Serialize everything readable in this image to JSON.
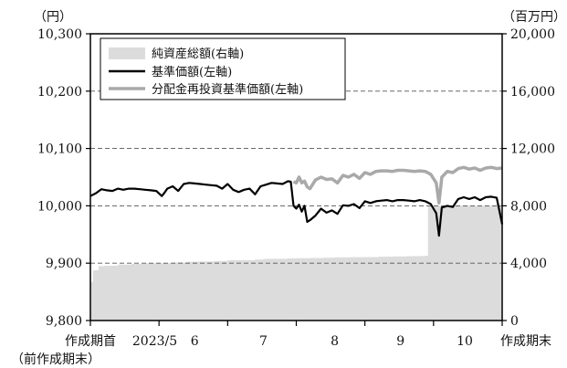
{
  "chart_data": {
    "type": "line",
    "title": "",
    "y_left_unit": "（円）",
    "y_right_unit": "（百万円）",
    "y_left": {
      "min": 9800,
      "max": 10300,
      "ticks": [
        9800,
        9900,
        10000,
        10100,
        10200,
        10300
      ],
      "tick_labels": [
        "9,800",
        "9,900",
        "10,000",
        "10,100",
        "10,200",
        "10,300"
      ]
    },
    "y_right": {
      "min": 0,
      "max": 20000,
      "ticks": [
        0,
        4000,
        8000,
        12000,
        16000,
        20000
      ],
      "tick_labels": [
        "0",
        "4,000",
        "8,000",
        "12,000",
        "16,000",
        "20,000"
      ]
    },
    "x_range": [
      0,
      150
    ],
    "x_ticks": [
      0,
      25,
      50,
      75,
      100,
      125,
      150
    ],
    "x_tick_labels": [
      "作成期首",
      "2023/5",
      "6",
      "7",
      "8",
      "9",
      "10",
      "作成期末"
    ],
    "x_tick_label_positions": [
      0,
      25,
      38,
      63,
      89,
      113,
      137,
      150
    ],
    "x_sublabel": "（前作成期末）",
    "gridlines": "dashed horizontal",
    "legend_position": "top-left",
    "series": [
      {
        "name": "純資産総額(右軸)",
        "kind": "area",
        "axis": "right",
        "color": "#dcdcdc",
        "x": [
          0,
          1,
          3,
          5,
          10,
          15,
          20,
          25,
          30,
          35,
          38,
          40,
          45,
          50,
          55,
          60,
          63,
          65,
          70,
          72,
          75,
          80,
          85,
          89,
          95,
          100,
          105,
          110,
          115,
          120,
          122,
          123,
          125,
          128,
          130,
          135,
          140,
          145,
          150
        ],
        "values": [
          2700,
          3500,
          3800,
          3820,
          3900,
          3950,
          4000,
          4000,
          4050,
          4100,
          4110,
          4120,
          4150,
          4200,
          4200,
          4250,
          4300,
          4310,
          4310,
          4330,
          4350,
          4360,
          4380,
          4400,
          4420,
          4430,
          4450,
          4470,
          4490,
          4500,
          4520,
          8000,
          8000,
          8000,
          8000,
          8010,
          8000,
          8000,
          8000
        ]
      },
      {
        "name": "基準価額(左軸)",
        "kind": "line",
        "axis": "left",
        "color": "#000000",
        "x": [
          0,
          2,
          4,
          6,
          8,
          10,
          12,
          14,
          16,
          18,
          20,
          22,
          24,
          26,
          27,
          28,
          30,
          32,
          34,
          36,
          38,
          40,
          42,
          44,
          46,
          48,
          50,
          52,
          54,
          56,
          58,
          60,
          62,
          64,
          66,
          68,
          70,
          72,
          73,
          74,
          75,
          76,
          77,
          78,
          79,
          80,
          82,
          84,
          86,
          88,
          90,
          92,
          94,
          96,
          98,
          100,
          102,
          104,
          106,
          108,
          110,
          112,
          114,
          116,
          118,
          120,
          122,
          124,
          126,
          127,
          128,
          130,
          132,
          134,
          136,
          138,
          140,
          142,
          144,
          146,
          148,
          150
        ],
        "values": [
          10017,
          10022,
          10029,
          10027,
          10026,
          10030,
          10028,
          10030,
          10030,
          10029,
          10028,
          10027,
          10026,
          10017,
          10023,
          10030,
          10034,
          10026,
          10038,
          10040,
          10039,
          10038,
          10037,
          10036,
          10035,
          10030,
          10038,
          10028,
          10024,
          10028,
          10030,
          10020,
          10034,
          10037,
          10040,
          10039,
          10038,
          10043,
          10042,
          10000,
          9995,
          10002,
          9990,
          10000,
          9972,
          9975,
          9983,
          9995,
          9988,
          9992,
          9986,
          10001,
          10000,
          10003,
          9996,
          10008,
          10005,
          10008,
          10009,
          10010,
          10008,
          10010,
          10010,
          10009,
          10008,
          10010,
          10008,
          10003,
          9987,
          9948,
          9997,
          10000,
          9998,
          10012,
          10015,
          10012,
          10015,
          10010,
          10015,
          10016,
          10014,
          9968
        ]
      },
      {
        "name": "分配金再投資基準価額(左軸)",
        "kind": "line",
        "axis": "left",
        "color": "#a9a9a9",
        "x": [
          74,
          75,
          76,
          77,
          78,
          79,
          80,
          82,
          84,
          86,
          88,
          90,
          92,
          94,
          96,
          98,
          100,
          102,
          104,
          106,
          108,
          110,
          112,
          114,
          116,
          118,
          120,
          122,
          124,
          126,
          127,
          128,
          130,
          132,
          134,
          136,
          138,
          140,
          142,
          144,
          146,
          148,
          150
        ],
        "values": [
          10042,
          10040,
          10050,
          10040,
          10043,
          10033,
          10030,
          10045,
          10050,
          10046,
          10047,
          10040,
          10053,
          10050,
          10055,
          10048,
          10058,
          10055,
          10060,
          10061,
          10061,
          10060,
          10062,
          10062,
          10061,
          10060,
          10061,
          10060,
          10055,
          10040,
          10005,
          10050,
          10060,
          10058,
          10065,
          10067,
          10064,
          10066,
          10062,
          10066,
          10067,
          10065,
          10066
        ]
      }
    ]
  }
}
